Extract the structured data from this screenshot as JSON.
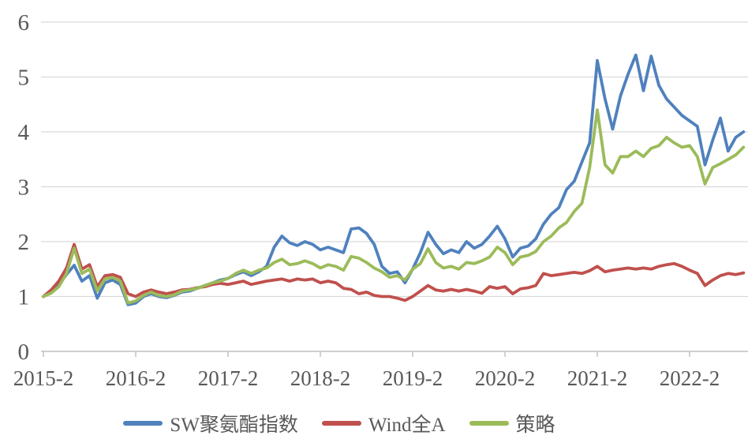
{
  "chart_data": {
    "type": "line",
    "title": "",
    "x_start": "2015-2",
    "x_end": "2022-9",
    "points_interval": "monthly",
    "x_tick_labels": [
      "2015-2",
      "2016-2",
      "2017-2",
      "2018-2",
      "2019-2",
      "2020-2",
      "2021-2",
      "2022-2"
    ],
    "y_tick_labels": [
      "0",
      "1",
      "2",
      "3",
      "4",
      "5",
      "6"
    ],
    "ylim": [
      0,
      6
    ],
    "grid": "horizontal",
    "legend_position": "bottom",
    "series": [
      {
        "name": "SW聚氨酯指数",
        "color": "#4F81BD",
        "values": [
          1.0,
          1.08,
          1.22,
          1.4,
          1.57,
          1.28,
          1.38,
          0.97,
          1.25,
          1.3,
          1.22,
          0.85,
          0.88,
          1.0,
          1.05,
          1.0,
          0.98,
          1.02,
          1.08,
          1.1,
          1.15,
          1.2,
          1.25,
          1.3,
          1.33,
          1.4,
          1.45,
          1.38,
          1.45,
          1.55,
          1.9,
          2.1,
          1.98,
          1.93,
          2.0,
          1.95,
          1.85,
          1.9,
          1.85,
          1.8,
          2.23,
          2.25,
          2.15,
          1.95,
          1.55,
          1.42,
          1.45,
          1.25,
          1.5,
          1.8,
          2.17,
          1.95,
          1.78,
          1.85,
          1.8,
          2.0,
          1.88,
          1.95,
          2.1,
          2.28,
          2.05,
          1.72,
          1.88,
          1.92,
          2.05,
          2.32,
          2.5,
          2.62,
          2.95,
          3.1,
          3.45,
          3.8,
          5.3,
          4.6,
          4.05,
          4.65,
          5.05,
          5.4,
          4.75,
          5.38,
          4.85,
          4.6,
          4.45,
          4.3,
          4.2,
          4.1,
          3.4,
          3.85,
          4.25,
          3.65,
          3.9,
          4.0
        ]
      },
      {
        "name": "Wind全A",
        "color": "#C0504D",
        "values": [
          1.0,
          1.12,
          1.28,
          1.52,
          1.95,
          1.5,
          1.58,
          1.18,
          1.38,
          1.4,
          1.35,
          1.05,
          1.0,
          1.08,
          1.12,
          1.08,
          1.05,
          1.08,
          1.12,
          1.13,
          1.16,
          1.18,
          1.22,
          1.24,
          1.22,
          1.25,
          1.28,
          1.22,
          1.25,
          1.28,
          1.3,
          1.32,
          1.28,
          1.32,
          1.3,
          1.32,
          1.25,
          1.28,
          1.25,
          1.15,
          1.13,
          1.05,
          1.08,
          1.02,
          1.0,
          1.0,
          0.97,
          0.93,
          1.0,
          1.1,
          1.2,
          1.12,
          1.1,
          1.13,
          1.1,
          1.13,
          1.1,
          1.06,
          1.18,
          1.15,
          1.18,
          1.05,
          1.14,
          1.16,
          1.2,
          1.42,
          1.38,
          1.4,
          1.42,
          1.44,
          1.42,
          1.47,
          1.55,
          1.45,
          1.48,
          1.5,
          1.52,
          1.5,
          1.52,
          1.5,
          1.55,
          1.58,
          1.6,
          1.55,
          1.48,
          1.42,
          1.2,
          1.3,
          1.38,
          1.42,
          1.4,
          1.43
        ]
      },
      {
        "name": "策略",
        "color": "#9BBB59",
        "values": [
          1.0,
          1.06,
          1.18,
          1.42,
          1.88,
          1.42,
          1.5,
          1.1,
          1.32,
          1.35,
          1.28,
          0.88,
          0.92,
          1.02,
          1.08,
          1.02,
          1.0,
          1.03,
          1.1,
          1.12,
          1.15,
          1.2,
          1.25,
          1.28,
          1.33,
          1.42,
          1.48,
          1.42,
          1.48,
          1.52,
          1.62,
          1.68,
          1.58,
          1.6,
          1.65,
          1.6,
          1.52,
          1.58,
          1.55,
          1.48,
          1.73,
          1.7,
          1.62,
          1.52,
          1.45,
          1.35,
          1.38,
          1.3,
          1.5,
          1.6,
          1.87,
          1.62,
          1.52,
          1.55,
          1.5,
          1.62,
          1.6,
          1.65,
          1.72,
          1.9,
          1.8,
          1.58,
          1.72,
          1.75,
          1.82,
          2.0,
          2.1,
          2.25,
          2.35,
          2.55,
          2.7,
          3.35,
          4.4,
          3.4,
          3.25,
          3.55,
          3.55,
          3.65,
          3.55,
          3.7,
          3.75,
          3.9,
          3.8,
          3.72,
          3.75,
          3.55,
          3.05,
          3.35,
          3.42,
          3.5,
          3.58,
          3.72
        ]
      }
    ]
  },
  "styles": {
    "background": "#FFFFFF",
    "gridline_color": "#D9D9D9",
    "axis_color": "#BFBFBF",
    "label_color": "#595959"
  }
}
